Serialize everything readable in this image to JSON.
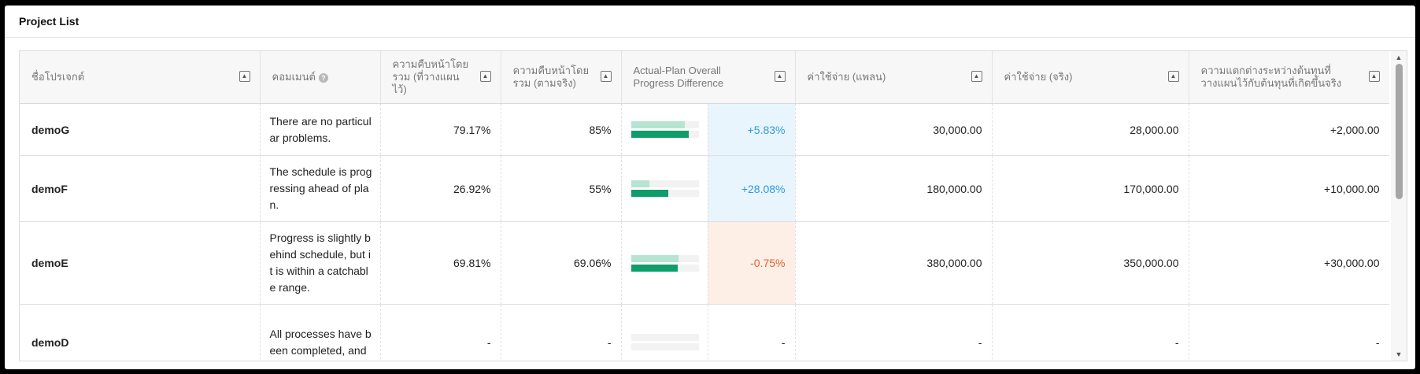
{
  "panel": {
    "title": "Project List"
  },
  "columns": {
    "name": "ชื่อโปรเจกต์",
    "comment": "คอมเมนต์",
    "plan_progress": "ความคืบหน้าโดยรวม (ที่วางแผนไว้)",
    "actual_progress": "ความคืบหน้าโดยรวม (ตามจริง)",
    "progress_diff": "Actual-Plan Overall Progress Difference",
    "plan_cost": "ค่าใช้จ่าย (แพลน)",
    "actual_cost": "ค่าใช้จ่าย (จริง)",
    "cost_diff": "ความแตกต่างระหว่างต้นทุนที่วางแผนไว้กับต้นทุนที่เกิดขึ้นจริง"
  },
  "icons": {
    "sort": "sort-up-icon",
    "help": "help-icon",
    "scroll_up": "scroll-up-icon",
    "scroll_down": "scroll-down-icon"
  },
  "colors": {
    "positive": "#2a9bdc",
    "negative": "#e0632c",
    "plan_bar": "#b7e3d2",
    "actual_bar": "#0f9d6b"
  },
  "rows": [
    {
      "name": "demoG",
      "comment": "There are no particular problems.",
      "plan_progress": "79.17%",
      "actual_progress": "85%",
      "plan_fraction": 0.7917,
      "actual_fraction": 0.85,
      "progress_diff": "+5.83%",
      "diff_sign": "pos",
      "plan_cost": "30,000.00",
      "actual_cost": "28,000.00",
      "cost_diff": "+2,000.00"
    },
    {
      "name": "demoF",
      "comment": "The schedule is progressing ahead of plan.",
      "plan_progress": "26.92%",
      "actual_progress": "55%",
      "plan_fraction": 0.2692,
      "actual_fraction": 0.55,
      "progress_diff": "+28.08%",
      "diff_sign": "pos",
      "plan_cost": "180,000.00",
      "actual_cost": "170,000.00",
      "cost_diff": "+10,000.00"
    },
    {
      "name": "demoE",
      "comment": "Progress is slightly behind schedule, but it is within a catchable range.",
      "plan_progress": "69.81%",
      "actual_progress": "69.06%",
      "plan_fraction": 0.6981,
      "actual_fraction": 0.6906,
      "progress_diff": "-0.75%",
      "diff_sign": "neg",
      "plan_cost": "380,000.00",
      "actual_cost": "350,000.00",
      "cost_diff": "+30,000.00"
    },
    {
      "name": "demoD",
      "comment": "All processes have been completed, and",
      "plan_progress": "-",
      "actual_progress": "-",
      "plan_fraction": 0,
      "actual_fraction": 0,
      "progress_diff": "-",
      "diff_sign": "none",
      "plan_cost": "-",
      "actual_cost": "-",
      "cost_diff": "-"
    }
  ]
}
